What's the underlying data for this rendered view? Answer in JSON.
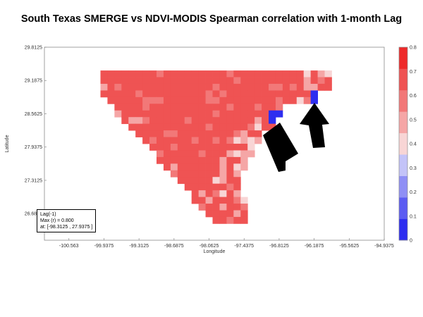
{
  "title": "South Texas SMERGE vs NDVI-MODIS Spearman correlation with 1-month Lag",
  "chart_data": {
    "type": "heatmap",
    "title": "South Texas SMERGE vs NDVI-MODIS Spearman correlation with 1-month Lag",
    "xlabel": "Longitude",
    "ylabel": "Latitude",
    "xlim": [
      -101.0,
      -94.9375
    ],
    "ylim": [
      26.1875,
      29.8125
    ],
    "x_ticks": [
      "-100.563",
      "-99.9375",
      "-99.3125",
      "-98.6875",
      "-98.0625",
      "-97.4375",
      "-96.8125",
      "-96.1875",
      "-95.5625",
      "-94.9375"
    ],
    "y_ticks": [
      "29.8125",
      "29.1875",
      "28.5625",
      "27.9375",
      "27.3125",
      "26.6875"
    ],
    "colorbar": {
      "ticks": [
        "0",
        "0.1",
        "0.2",
        "0.3",
        "0.4",
        "0.5",
        "0.6",
        "0.7",
        "0.8"
      ],
      "colors": [
        "#2e2ef0",
        "#5c5cf2",
        "#8f8ff5",
        "#c3c3f8",
        "#f8d5d5",
        "#f5a6a6",
        "#f27878",
        "#ef5353",
        "#ee2a2a"
      ]
    },
    "cell_size_deg": 0.125,
    "bounds": {
      "north": 29.3125,
      "south": 26.5625,
      "west_edges": [
        [
          29.3125,
          -99.9375
        ],
        [
          29.1875,
          -99.9375
        ],
        [
          29.0625,
          -99.9375
        ],
        [
          28.9375,
          -99.9375
        ],
        [
          28.8125,
          -99.8125
        ],
        [
          28.6875,
          -99.6875
        ],
        [
          28.5625,
          -99.6875
        ],
        [
          28.4375,
          -99.5625
        ],
        [
          28.3125,
          -99.4375
        ],
        [
          28.1875,
          -99.3125
        ],
        [
          28.0625,
          -99.1875
        ],
        [
          27.9375,
          -99.0625
        ],
        [
          27.8125,
          -98.9375
        ],
        [
          27.6875,
          -98.9375
        ],
        [
          27.5625,
          -98.8125
        ],
        [
          27.4375,
          -98.6875
        ],
        [
          27.3125,
          -98.5625
        ],
        [
          27.1875,
          -98.4375
        ],
        [
          27.0625,
          -98.3125
        ],
        [
          26.9375,
          -98.3125
        ],
        [
          26.8125,
          -98.1875
        ],
        [
          26.6875,
          -98.0625
        ],
        [
          26.5625,
          -97.9375
        ]
      ]
    },
    "blue_cells": [
      {
        "lat": 28.5625,
        "lon": -96.8125,
        "value": 0.0
      },
      {
        "lat": 28.5625,
        "lon": -96.9375,
        "value": 0.0
      },
      {
        "lat": 28.4375,
        "lon": -96.9375,
        "value": 0.0
      },
      {
        "lat": 28.4375,
        "lon": -96.8125,
        "value": 0.0
      },
      {
        "lat": 28.9375,
        "lon": -96.0625,
        "value": 0.0
      },
      {
        "lat": 28.9375,
        "lon": -96.1875,
        "value": 0.0
      },
      {
        "lat": 28.9375,
        "lon": -95.9375,
        "value": 0.0
      },
      {
        "lat": 28.8125,
        "lon": -96.1875,
        "value": 0.0
      },
      {
        "lat": 28.8125,
        "lon": -96.0625,
        "value": 0.1
      },
      {
        "lat": 28.6875,
        "lon": -96.6875,
        "value": 0.3
      }
    ],
    "annotation": {
      "lines": [
        "Lag(-1)",
        "Max (r) = 0.800",
        "at: [-98.3125 , 27.9375 ]"
      ],
      "max_r": 0.8,
      "max_at": [
        -98.3125,
        27.9375
      ]
    }
  }
}
